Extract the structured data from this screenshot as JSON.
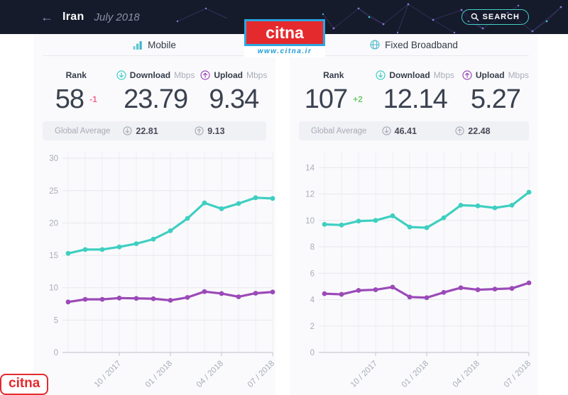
{
  "header": {
    "back_arrow": "←",
    "country": "Iran",
    "date": "July 2018",
    "search_label": "SEARCH"
  },
  "watermark": {
    "logo_text": "citna",
    "url": "www.citna.ir"
  },
  "corner_logo": {
    "text": "citna"
  },
  "colors": {
    "header_bg": "#151b2b",
    "teal": "#3ecfc1",
    "purple": "#9b4ab8",
    "rank_down": "#f0688d",
    "rank_up": "#74c86e",
    "panel_bg": "#fafafc",
    "global_bar_bg": "#f0f1f5",
    "logo_red": "#e52a2e",
    "logo_blue": "#29a8e0",
    "search_border": "#45d1c6"
  },
  "panels": [
    {
      "tab_label": "Mobile",
      "rank_label": "Rank",
      "rank": "58",
      "rank_change": "-1",
      "download_label": "Download",
      "upload_label": "Upload",
      "unit": "Mbps",
      "download": "23.79",
      "upload": "9.34",
      "global_average_label": "Global Average",
      "global_download": "22.81",
      "global_upload": "9.13"
    },
    {
      "tab_label": "Fixed Broadband",
      "rank_label": "Rank",
      "rank": "107",
      "rank_change": "+2",
      "download_label": "Download",
      "upload_label": "Upload",
      "unit": "Mbps",
      "download": "12.14",
      "upload": "5.27",
      "global_average_label": "Global Average",
      "global_download": "46.41",
      "global_upload": "22.48"
    }
  ],
  "chart_data": [
    {
      "type": "line",
      "title": "Mobile speeds over time (Mbps)",
      "x": [
        "2017-07",
        "2017-08",
        "2017-09",
        "2017-10",
        "2017-11",
        "2017-12",
        "2018-01",
        "2018-02",
        "2018-03",
        "2018-04",
        "2018-05",
        "2018-06",
        "2018-07"
      ],
      "x_tick_indices": [
        3,
        6,
        9,
        12
      ],
      "x_tick_labels": [
        "10 / 2017",
        "01 / 2018",
        "04 / 2018",
        "07 / 2018"
      ],
      "y_ticks": [
        0,
        5,
        10,
        15,
        20,
        25,
        30
      ],
      "ylim": [
        0,
        31
      ],
      "grid": true,
      "legend": "none",
      "series": [
        {
          "name": "Download Mbps",
          "color": "#3ecfc1",
          "values": [
            15.3,
            15.9,
            15.9,
            16.3,
            16.8,
            17.5,
            18.8,
            20.7,
            23.1,
            22.2,
            23.0,
            23.9,
            23.79
          ]
        },
        {
          "name": "Upload Mbps",
          "color": "#9b4ab8",
          "values": [
            7.8,
            8.2,
            8.2,
            8.4,
            8.35,
            8.3,
            8.05,
            8.5,
            9.4,
            9.1,
            8.6,
            9.15,
            9.34
          ]
        }
      ]
    },
    {
      "type": "line",
      "title": "Fixed Broadband speeds over time (Mbps)",
      "x": [
        "2017-07",
        "2017-08",
        "2017-09",
        "2017-10",
        "2017-11",
        "2017-12",
        "2018-01",
        "2018-02",
        "2018-03",
        "2018-04",
        "2018-05",
        "2018-06",
        "2018-07"
      ],
      "x_tick_indices": [
        3,
        6,
        9,
        12
      ],
      "x_tick_labels": [
        "10 / 2017",
        "01 / 2018",
        "04 / 2018",
        "07 / 2018"
      ],
      "y_ticks": [
        0,
        2,
        4,
        6,
        8,
        10,
        12,
        14
      ],
      "ylim": [
        0,
        15.2
      ],
      "grid": true,
      "legend": "none",
      "series": [
        {
          "name": "Download Mbps",
          "color": "#3ecfc1",
          "values": [
            9.7,
            9.65,
            9.95,
            10.0,
            10.35,
            9.5,
            9.45,
            10.2,
            11.15,
            11.1,
            10.95,
            11.15,
            12.14
          ]
        },
        {
          "name": "Upload Mbps",
          "color": "#9b4ab8",
          "values": [
            4.45,
            4.4,
            4.7,
            4.75,
            4.95,
            4.2,
            4.15,
            4.55,
            4.9,
            4.75,
            4.8,
            4.85,
            5.27
          ]
        }
      ]
    }
  ]
}
